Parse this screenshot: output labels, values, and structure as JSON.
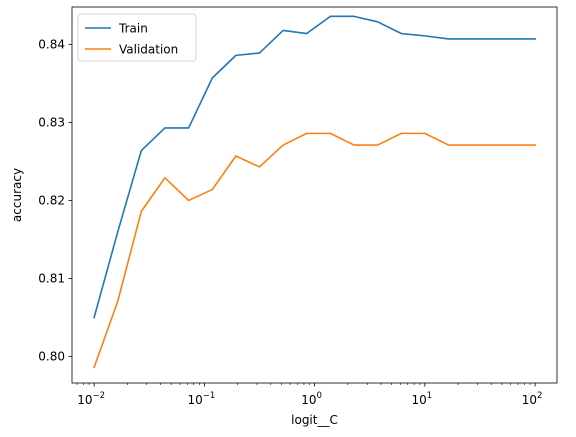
{
  "chart_data": {
    "type": "line",
    "title": "",
    "xlabel": "logit__C",
    "ylabel": "accuracy",
    "xscale": "log",
    "xlim": [
      0.0063,
      158
    ],
    "ylim": [
      0.7966,
      0.8448
    ],
    "grid": false,
    "legend_position": "top-left",
    "x": [
      0.01,
      0.0164,
      0.0268,
      0.0439,
      0.072,
      0.118,
      0.193,
      0.316,
      0.518,
      0.848,
      1.39,
      2.28,
      3.73,
      6.11,
      10.0,
      16.4,
      26.8,
      43.9,
      72.0,
      100.0
    ],
    "x_ticks": [
      {
        "value": 0.01,
        "base": "10",
        "exp": "−2"
      },
      {
        "value": 0.1,
        "base": "10",
        "exp": "−1"
      },
      {
        "value": 1,
        "base": "10",
        "exp": "0"
      },
      {
        "value": 10,
        "base": "10",
        "exp": "1"
      },
      {
        "value": 100,
        "base": "10",
        "exp": "2"
      }
    ],
    "y_ticks": [
      {
        "value": 0.8,
        "label": "0.80"
      },
      {
        "value": 0.81,
        "label": "0.81"
      },
      {
        "value": 0.82,
        "label": "0.82"
      },
      {
        "value": 0.83,
        "label": "0.83"
      },
      {
        "value": 0.84,
        "label": "0.84"
      }
    ],
    "series": [
      {
        "name": "Train",
        "color": "#1f77b4",
        "values": [
          0.805,
          0.816,
          0.8264,
          0.8293,
          0.8293,
          0.8357,
          0.8386,
          0.8389,
          0.8418,
          0.8414,
          0.8436,
          0.8436,
          0.8429,
          0.8414,
          0.8411,
          0.8407,
          0.8407,
          0.8407,
          0.8407,
          0.8407
        ]
      },
      {
        "name": "Validation",
        "color": "#ff7f0e",
        "values": [
          0.7986,
          0.8071,
          0.8186,
          0.8229,
          0.82,
          0.8214,
          0.8257,
          0.8243,
          0.8271,
          0.8286,
          0.8286,
          0.8271,
          0.8271,
          0.8286,
          0.8286,
          0.8271,
          0.8271,
          0.8271,
          0.8271,
          0.8271
        ]
      }
    ]
  }
}
